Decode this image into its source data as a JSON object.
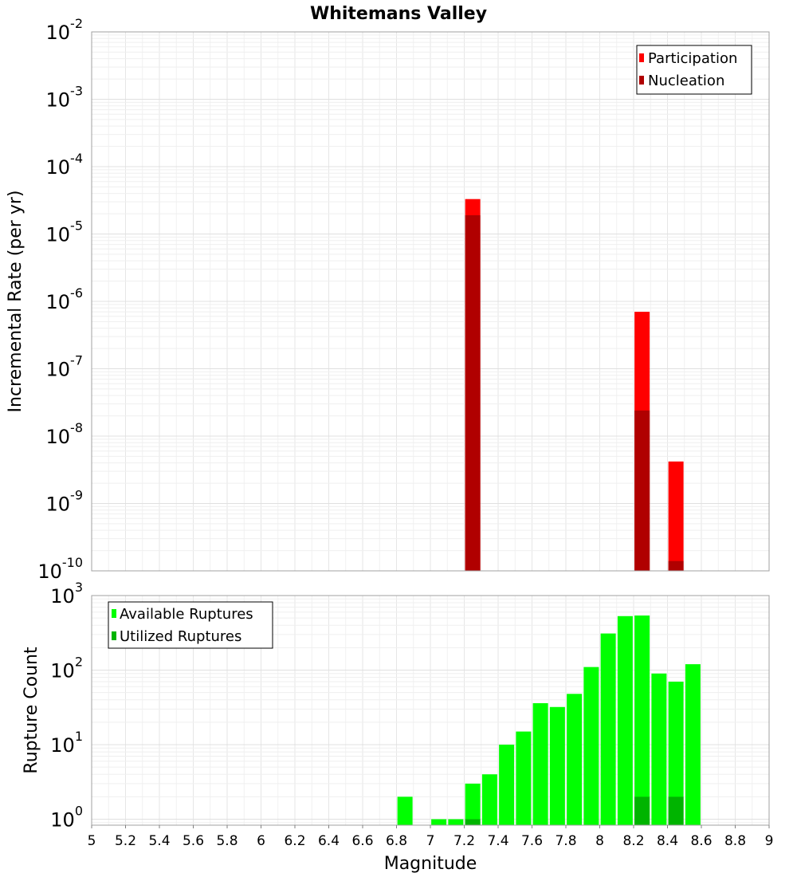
{
  "chart_data": [
    {
      "type": "bar",
      "title": "Whitemans Valley",
      "xlabel": "",
      "ylabel": "Incremental Rate (per yr)",
      "yscale": "log",
      "ylim_exp": [
        -10,
        -2
      ],
      "xlim": [
        5,
        9
      ],
      "ytick_base": "10",
      "ytick_exponents": [
        "-10",
        "-9",
        "-8",
        "-7",
        "-6",
        "-5",
        "-4",
        "-3",
        "-2"
      ],
      "legend_position": "top-right",
      "series": [
        {
          "name": "Participation",
          "color": "#ff0000",
          "x": [
            7.25,
            8.25,
            8.45
          ],
          "values": [
            3.3e-05,
            7e-07,
            4.2e-09
          ]
        },
        {
          "name": "Nucleation",
          "color": "#b00000",
          "x": [
            7.25,
            8.25,
            8.45
          ],
          "values": [
            1.9e-05,
            2.4e-08,
            1.4e-10
          ]
        }
      ]
    },
    {
      "type": "bar",
      "title": "",
      "xlabel": "Magnitude",
      "ylabel": "Rupture Count",
      "yscale": "log",
      "ylim_exp": [
        0,
        3
      ],
      "xlim": [
        5,
        9
      ],
      "ytick_base": "10",
      "ytick_exponents": [
        "0",
        "1",
        "2",
        "3"
      ],
      "legend_position": "top-left",
      "xticks": [
        "5",
        "5.2",
        "5.4",
        "5.6",
        "5.8",
        "6",
        "6.2",
        "6.4",
        "6.6",
        "6.8",
        "7",
        "7.2",
        "7.4",
        "7.6",
        "7.8",
        "8",
        "8.2",
        "8.4",
        "8.6",
        "8.8",
        "9"
      ],
      "series": [
        {
          "name": "Available Ruptures",
          "color": "#00ff00",
          "x": [
            6.85,
            7.05,
            7.15,
            7.25,
            7.35,
            7.45,
            7.55,
            7.65,
            7.75,
            7.85,
            7.95,
            8.05,
            8.15,
            8.25,
            8.35,
            8.45,
            8.55
          ],
          "values": [
            2,
            1,
            1,
            3,
            4,
            10,
            15,
            36,
            32,
            48,
            110,
            310,
            530,
            540,
            90,
            70,
            120
          ]
        },
        {
          "name": "Utilized Ruptures",
          "color": "#00b400",
          "x": [
            7.25,
            8.25,
            8.45
          ],
          "values": [
            1,
            2,
            2
          ]
        }
      ]
    }
  ]
}
